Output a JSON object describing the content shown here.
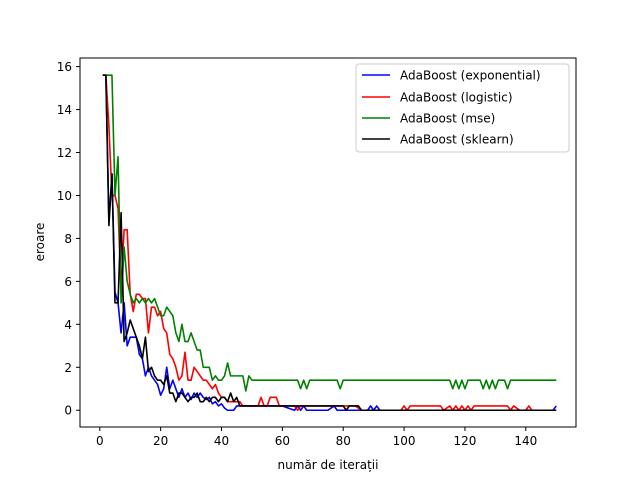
{
  "chart_data": {
    "type": "line",
    "title": "",
    "xlabel": "număr de iterații",
    "ylabel": "eroare",
    "xlim": [
      -6.5,
      156.5
    ],
    "ylim": [
      -0.78,
      16.4
    ],
    "xticks": [
      0,
      20,
      40,
      60,
      80,
      100,
      120,
      140
    ],
    "yticks": [
      0,
      2,
      4,
      6,
      8,
      10,
      12,
      14,
      16
    ],
    "grid": false,
    "legend_position": "top-right",
    "series": [
      {
        "name": "AdaBoost (exponential)",
        "color": "#0000ff",
        "points": [
          [
            1,
            15.6
          ],
          [
            2,
            15.6
          ],
          [
            3,
            8.8
          ],
          [
            4,
            11.0
          ],
          [
            5,
            5.5
          ],
          [
            6,
            5.0
          ],
          [
            7,
            3.6
          ],
          [
            8,
            5.0
          ],
          [
            9,
            3.0
          ],
          [
            10,
            3.4
          ],
          [
            11,
            3.4
          ],
          [
            12,
            3.4
          ],
          [
            13,
            2.6
          ],
          [
            14,
            2.4
          ],
          [
            15,
            1.6
          ],
          [
            16,
            2.0
          ],
          [
            17,
            1.6
          ],
          [
            18,
            1.4
          ],
          [
            19,
            1.2
          ],
          [
            20,
            0.7
          ],
          [
            21,
            1.0
          ],
          [
            22,
            2.0
          ],
          [
            23,
            1.0
          ],
          [
            24,
            1.4
          ],
          [
            25,
            1.0
          ],
          [
            26,
            0.6
          ],
          [
            27,
            1.0
          ],
          [
            28,
            0.6
          ],
          [
            29,
            0.8
          ],
          [
            30,
            0.5
          ],
          [
            31,
            0.8
          ],
          [
            32,
            0.6
          ],
          [
            33,
            0.8
          ],
          [
            34,
            0.6
          ],
          [
            35,
            0.5
          ],
          [
            36,
            0.6
          ],
          [
            37,
            0.3
          ],
          [
            38,
            0.4
          ],
          [
            39,
            0.2
          ],
          [
            40,
            0.3
          ],
          [
            41,
            0.1
          ],
          [
            42,
            0.0
          ],
          [
            43,
            0.0
          ],
          [
            44,
            0.0
          ],
          [
            45,
            0.2
          ],
          [
            46,
            0.2
          ],
          [
            50,
            0.2
          ],
          [
            55,
            0.2
          ],
          [
            60,
            0.2
          ],
          [
            64,
            0.0
          ],
          [
            65,
            0.2
          ],
          [
            66,
            0.0
          ],
          [
            67,
            0.2
          ],
          [
            68,
            0.0
          ],
          [
            70,
            0.0
          ],
          [
            75,
            0.0
          ],
          [
            77,
            0.2
          ],
          [
            78,
            0.0
          ],
          [
            80,
            0.0
          ],
          [
            85,
            0.0
          ],
          [
            88,
            0.0
          ],
          [
            89,
            0.2
          ],
          [
            90,
            0.0
          ],
          [
            91,
            0.2
          ],
          [
            92,
            0.0
          ],
          [
            95,
            0.0
          ],
          [
            100,
            0.0
          ],
          [
            110,
            0.0
          ],
          [
            120,
            0.0
          ],
          [
            130,
            0.0
          ],
          [
            140,
            0.0
          ],
          [
            149,
            0.0
          ],
          [
            150,
            0.2
          ]
        ]
      },
      {
        "name": "AdaBoost (logistic)",
        "color": "#ff0000",
        "points": [
          [
            1,
            15.6
          ],
          [
            2,
            15.6
          ],
          [
            3,
            13.2
          ],
          [
            4,
            10.0
          ],
          [
            5,
            10.0
          ],
          [
            6,
            9.4
          ],
          [
            7,
            5.6
          ],
          [
            8,
            8.4
          ],
          [
            9,
            8.4
          ],
          [
            10,
            5.4
          ],
          [
            11,
            4.6
          ],
          [
            12,
            5.4
          ],
          [
            13,
            5.4
          ],
          [
            14,
            5.2
          ],
          [
            15,
            5.2
          ],
          [
            16,
            3.6
          ],
          [
            17,
            4.8
          ],
          [
            18,
            4.8
          ],
          [
            19,
            4.4
          ],
          [
            20,
            4.6
          ],
          [
            21,
            3.8
          ],
          [
            22,
            3.6
          ],
          [
            23,
            2.6
          ],
          [
            24,
            2.4
          ],
          [
            25,
            2.0
          ],
          [
            26,
            1.4
          ],
          [
            27,
            1.6
          ],
          [
            28,
            2.7
          ],
          [
            29,
            1.4
          ],
          [
            30,
            1.4
          ],
          [
            31,
            2.0
          ],
          [
            32,
            1.8
          ],
          [
            33,
            1.6
          ],
          [
            34,
            1.4
          ],
          [
            35,
            1.4
          ],
          [
            36,
            1.2
          ],
          [
            37,
            1.0
          ],
          [
            38,
            1.2
          ],
          [
            39,
            0.8
          ],
          [
            40,
            0.6
          ],
          [
            41,
            0.6
          ],
          [
            42,
            0.4
          ],
          [
            44,
            0.4
          ],
          [
            46,
            0.4
          ],
          [
            47,
            0.2
          ],
          [
            50,
            0.2
          ],
          [
            52,
            0.2
          ],
          [
            53,
            0.6
          ],
          [
            54,
            0.2
          ],
          [
            55,
            0.2
          ],
          [
            56,
            0.6
          ],
          [
            57,
            0.6
          ],
          [
            58,
            0.6
          ],
          [
            59,
            0.2
          ],
          [
            60,
            0.2
          ],
          [
            64,
            0.2
          ],
          [
            65,
            0.0
          ],
          [
            66,
            0.2
          ],
          [
            70,
            0.2
          ],
          [
            75,
            0.2
          ],
          [
            80,
            0.2
          ],
          [
            84,
            0.2
          ],
          [
            86,
            0.0
          ],
          [
            90,
            0.0
          ],
          [
            95,
            0.0
          ],
          [
            99,
            0.0
          ],
          [
            100,
            0.2
          ],
          [
            101,
            0.0
          ],
          [
            102,
            0.2
          ],
          [
            110,
            0.2
          ],
          [
            112,
            0.2
          ],
          [
            113,
            0.0
          ],
          [
            115,
            0.2
          ],
          [
            116,
            0.0
          ],
          [
            117,
            0.2
          ],
          [
            118,
            0.0
          ],
          [
            119,
            0.2
          ],
          [
            120,
            0.0
          ],
          [
            121,
            0.2
          ],
          [
            122,
            0.0
          ],
          [
            123,
            0.2
          ],
          [
            126,
            0.2
          ],
          [
            130,
            0.2
          ],
          [
            134,
            0.2
          ],
          [
            135,
            0.0
          ],
          [
            136,
            0.2
          ],
          [
            138,
            0.0
          ],
          [
            139,
            0.0
          ],
          [
            140,
            0.0
          ],
          [
            141,
            0.2
          ],
          [
            142,
            0.0
          ],
          [
            145,
            0.0
          ],
          [
            150,
            0.0
          ]
        ]
      },
      {
        "name": "AdaBoost (mse)",
        "color": "#008000",
        "points": [
          [
            1,
            15.6
          ],
          [
            2,
            15.6
          ],
          [
            3,
            15.6
          ],
          [
            4,
            15.6
          ],
          [
            5,
            10.0
          ],
          [
            6,
            11.8
          ],
          [
            7,
            5.0
          ],
          [
            8,
            7.6
          ],
          [
            9,
            6.0
          ],
          [
            10,
            5.4
          ],
          [
            11,
            5.0
          ],
          [
            12,
            5.2
          ],
          [
            13,
            5.0
          ],
          [
            14,
            5.2
          ],
          [
            15,
            5.0
          ],
          [
            16,
            5.2
          ],
          [
            17,
            5.0
          ],
          [
            18,
            5.2
          ],
          [
            19,
            4.8
          ],
          [
            20,
            4.4
          ],
          [
            21,
            4.4
          ],
          [
            22,
            4.8
          ],
          [
            23,
            4.6
          ],
          [
            24,
            4.4
          ],
          [
            25,
            3.6
          ],
          [
            26,
            3.2
          ],
          [
            27,
            4.0
          ],
          [
            28,
            3.2
          ],
          [
            29,
            3.2
          ],
          [
            30,
            3.6
          ],
          [
            31,
            3.2
          ],
          [
            32,
            2.8
          ],
          [
            33,
            2.8
          ],
          [
            34,
            2.0
          ],
          [
            35,
            2.0
          ],
          [
            36,
            2.0
          ],
          [
            37,
            1.4
          ],
          [
            38,
            1.6
          ],
          [
            39,
            1.4
          ],
          [
            40,
            1.4
          ],
          [
            41,
            1.6
          ],
          [
            42,
            2.2
          ],
          [
            43,
            1.6
          ],
          [
            44,
            1.6
          ],
          [
            45,
            1.6
          ],
          [
            46,
            1.6
          ],
          [
            47,
            1.6
          ],
          [
            48,
            0.9
          ],
          [
            49,
            1.6
          ],
          [
            50,
            1.4
          ],
          [
            55,
            1.4
          ],
          [
            60,
            1.4
          ],
          [
            65,
            1.4
          ],
          [
            66,
            1.0
          ],
          [
            67,
            1.4
          ],
          [
            68,
            1.0
          ],
          [
            69,
            1.4
          ],
          [
            70,
            1.4
          ],
          [
            75,
            1.4
          ],
          [
            78,
            1.4
          ],
          [
            79,
            1.0
          ],
          [
            80,
            1.4
          ],
          [
            90,
            1.4
          ],
          [
            100,
            1.4
          ],
          [
            110,
            1.4
          ],
          [
            115,
            1.4
          ],
          [
            116,
            1.0
          ],
          [
            117,
            1.4
          ],
          [
            118,
            1.0
          ],
          [
            119,
            1.4
          ],
          [
            120,
            1.0
          ],
          [
            121,
            1.4
          ],
          [
            125,
            1.4
          ],
          [
            126,
            1.0
          ],
          [
            127,
            1.4
          ],
          [
            128,
            1.0
          ],
          [
            129,
            1.4
          ],
          [
            130,
            1.0
          ],
          [
            131,
            1.4
          ],
          [
            133,
            1.4
          ],
          [
            134,
            1.0
          ],
          [
            135,
            1.4
          ],
          [
            140,
            1.4
          ],
          [
            145,
            1.4
          ],
          [
            150,
            1.4
          ]
        ]
      },
      {
        "name": "AdaBoost (sklearn)",
        "color": "#000000",
        "points": [
          [
            1,
            15.6
          ],
          [
            2,
            15.6
          ],
          [
            3,
            8.6
          ],
          [
            4,
            11.0
          ],
          [
            5,
            5.0
          ],
          [
            6,
            5.0
          ],
          [
            7,
            9.2
          ],
          [
            8,
            3.2
          ],
          [
            9,
            3.6
          ],
          [
            10,
            4.2
          ],
          [
            11,
            3.8
          ],
          [
            12,
            3.4
          ],
          [
            13,
            3.0
          ],
          [
            14,
            2.4
          ],
          [
            15,
            3.4
          ],
          [
            16,
            1.8
          ],
          [
            17,
            2.0
          ],
          [
            18,
            1.6
          ],
          [
            19,
            1.4
          ],
          [
            20,
            1.4
          ],
          [
            21,
            1.2
          ],
          [
            22,
            1.6
          ],
          [
            23,
            0.8
          ],
          [
            24,
            0.8
          ],
          [
            25,
            0.4
          ],
          [
            26,
            0.8
          ],
          [
            27,
            0.8
          ],
          [
            28,
            0.6
          ],
          [
            29,
            0.4
          ],
          [
            30,
            0.6
          ],
          [
            31,
            0.6
          ],
          [
            32,
            0.8
          ],
          [
            33,
            0.4
          ],
          [
            34,
            0.4
          ],
          [
            35,
            0.6
          ],
          [
            36,
            0.4
          ],
          [
            37,
            0.6
          ],
          [
            38,
            0.6
          ],
          [
            39,
            0.4
          ],
          [
            40,
            0.6
          ],
          [
            41,
            0.6
          ],
          [
            42,
            0.4
          ],
          [
            43,
            0.8
          ],
          [
            44,
            0.4
          ],
          [
            45,
            0.6
          ],
          [
            46,
            0.2
          ],
          [
            47,
            0.2
          ],
          [
            48,
            0.2
          ],
          [
            50,
            0.2
          ],
          [
            55,
            0.2
          ],
          [
            60,
            0.2
          ],
          [
            65,
            0.2
          ],
          [
            70,
            0.2
          ],
          [
            75,
            0.2
          ],
          [
            80,
            0.2
          ],
          [
            81,
            0.0
          ],
          [
            82,
            0.2
          ],
          [
            85,
            0.2
          ],
          [
            86,
            0.0
          ],
          [
            90,
            0.0
          ],
          [
            100,
            0.0
          ],
          [
            110,
            0.0
          ],
          [
            120,
            0.0
          ],
          [
            130,
            0.0
          ],
          [
            140,
            0.0
          ],
          [
            150,
            0.0
          ]
        ]
      }
    ]
  }
}
